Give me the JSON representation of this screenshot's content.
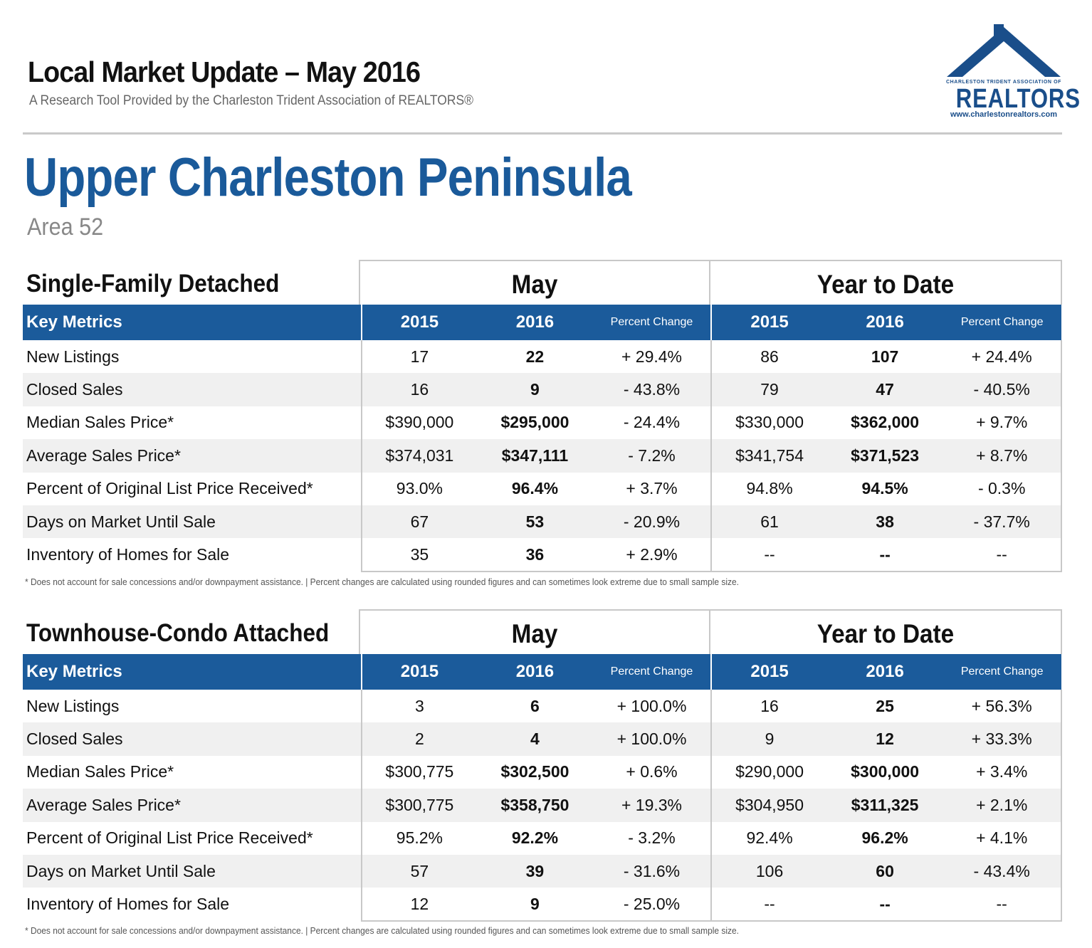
{
  "header": {
    "title": "Local Market Update – May 2016",
    "subtitle": "A Research Tool Provided by the Charleston Trident Association of REALTORS®"
  },
  "logo": {
    "association": "CHARLESTON TRIDENT ASSOCIATION OF",
    "brand": "REALTORS",
    "url": "www.charlestonrealtors.com",
    "color": "#1a4e8a"
  },
  "area": {
    "name": "Upper Charleston Peninsula",
    "code": "Area 52"
  },
  "colors": {
    "accent": "#1b5b9b",
    "title": "#1a5a9a",
    "row_alt": "#f0f0f0"
  },
  "sections": [
    {
      "title": "Single-Family Detached",
      "group_month": "May",
      "group_ytd": "Year to Date",
      "columns": {
        "key": "Key Metrics",
        "y1": "2015",
        "y2": "2016",
        "pct": "Percent Change"
      },
      "rows": [
        {
          "metric": "New Listings",
          "m15": "17",
          "m16": "22",
          "mpc": "+ 29.4%",
          "y15": "86",
          "y16": "107",
          "ypc": "+ 24.4%"
        },
        {
          "metric": "Closed Sales",
          "m15": "16",
          "m16": "9",
          "mpc": "- 43.8%",
          "y15": "79",
          "y16": "47",
          "ypc": "- 40.5%"
        },
        {
          "metric": "Median Sales Price*",
          "m15": "$390,000",
          "m16": "$295,000",
          "mpc": "- 24.4%",
          "y15": "$330,000",
          "y16": "$362,000",
          "ypc": "+ 9.7%"
        },
        {
          "metric": "Average Sales Price*",
          "m15": "$374,031",
          "m16": "$347,111",
          "mpc": "- 7.2%",
          "y15": "$341,754",
          "y16": "$371,523",
          "ypc": "+ 8.7%"
        },
        {
          "metric": "Percent of Original List Price Received*",
          "m15": "93.0%",
          "m16": "96.4%",
          "mpc": "+ 3.7%",
          "y15": "94.8%",
          "y16": "94.5%",
          "ypc": "- 0.3%"
        },
        {
          "metric": "Days on Market Until Sale",
          "m15": "67",
          "m16": "53",
          "mpc": "- 20.9%",
          "y15": "61",
          "y16": "38",
          "ypc": "- 37.7%"
        },
        {
          "metric": "Inventory of Homes for Sale",
          "m15": "35",
          "m16": "36",
          "mpc": "+ 2.9%",
          "y15": "--",
          "y16": "--",
          "ypc": "--"
        }
      ],
      "footnote": "* Does not account for sale concessions and/or downpayment assistance.  |  Percent changes are calculated using rounded figures and can sometimes look extreme due to small sample size."
    },
    {
      "title": "Townhouse-Condo Attached",
      "group_month": "May",
      "group_ytd": "Year to Date",
      "columns": {
        "key": "Key Metrics",
        "y1": "2015",
        "y2": "2016",
        "pct": "Percent Change"
      },
      "rows": [
        {
          "metric": "New Listings",
          "m15": "3",
          "m16": "6",
          "mpc": "+ 100.0%",
          "y15": "16",
          "y16": "25",
          "ypc": "+ 56.3%"
        },
        {
          "metric": "Closed Sales",
          "m15": "2",
          "m16": "4",
          "mpc": "+ 100.0%",
          "y15": "9",
          "y16": "12",
          "ypc": "+ 33.3%"
        },
        {
          "metric": "Median Sales Price*",
          "m15": "$300,775",
          "m16": "$302,500",
          "mpc": "+ 0.6%",
          "y15": "$290,000",
          "y16": "$300,000",
          "ypc": "+ 3.4%"
        },
        {
          "metric": "Average Sales Price*",
          "m15": "$300,775",
          "m16": "$358,750",
          "mpc": "+ 19.3%",
          "y15": "$304,950",
          "y16": "$311,325",
          "ypc": "+ 2.1%"
        },
        {
          "metric": "Percent of Original List Price Received*",
          "m15": "95.2%",
          "m16": "92.2%",
          "mpc": "- 3.2%",
          "y15": "92.4%",
          "y16": "96.2%",
          "ypc": "+ 4.1%"
        },
        {
          "metric": "Days on Market Until Sale",
          "m15": "57",
          "m16": "39",
          "mpc": "- 31.6%",
          "y15": "106",
          "y16": "60",
          "ypc": "- 43.4%"
        },
        {
          "metric": "Inventory of Homes for Sale",
          "m15": "12",
          "m16": "9",
          "mpc": "- 25.0%",
          "y15": "--",
          "y16": "--",
          "ypc": "--"
        }
      ],
      "footnote": "* Does not account for sale concessions and/or downpayment assistance.  |  Percent changes are calculated using rounded figures and can sometimes look extreme due to small sample size."
    }
  ]
}
